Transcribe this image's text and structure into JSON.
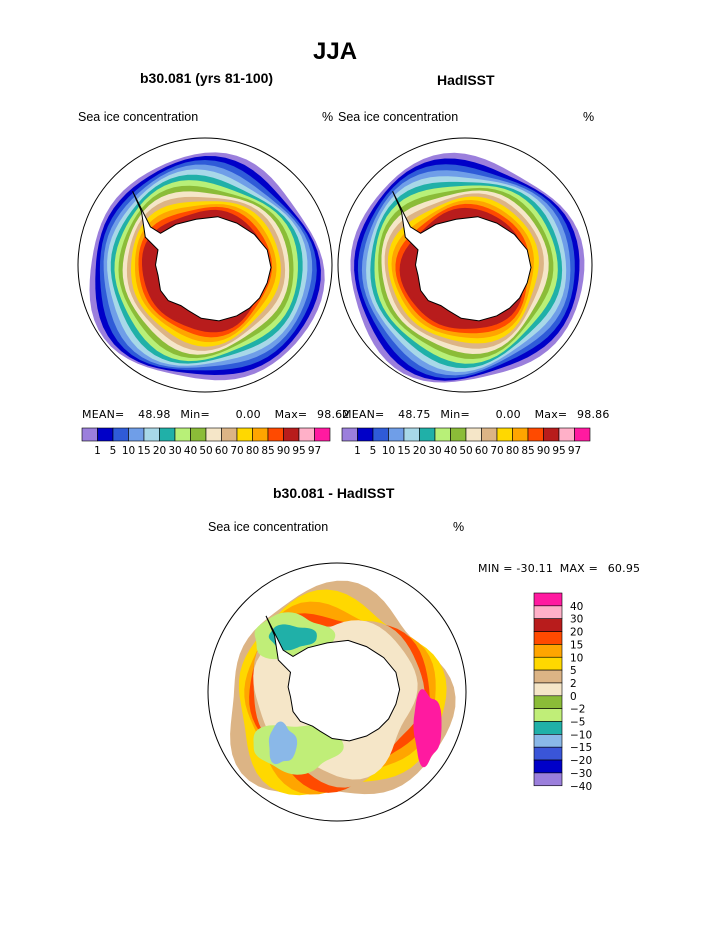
{
  "title": "JJA",
  "colors": {
    "sic_palette": [
      "#9b7fdc",
      "#0000c8",
      "#2f5bd8",
      "#6f9ee8",
      "#a8d8e8",
      "#20b0a8",
      "#b8f078",
      "#8bbc38",
      "#f5e6c8",
      "#dcb485",
      "#ffd800",
      "#ffa500",
      "#ff4a00",
      "#b81c1c",
      "#ffb0c8",
      "#ff1aa0"
    ],
    "diff_palette": [
      "#9b7fdc",
      "#0000c8",
      "#3a55d8",
      "#8ab8e8",
      "#20b0a8",
      "#c0ee78",
      "#8bbc38",
      "#f5e6c8",
      "#dcb485",
      "#ffd800",
      "#ffa500",
      "#ff4a00",
      "#b81c1c",
      "#ffb0c8",
      "#ff1aa0"
    ]
  },
  "panels": [
    {
      "subtitle": "b30.081 (yrs 81-100)",
      "left_label": "Sea ice concentration",
      "right_label": "%",
      "stats": {
        "mean_label": "MEAN=",
        "mean": "48.98",
        "min_label": "Min=",
        "min": "0.00",
        "max_label": "Max=",
        "max": "98.62"
      }
    },
    {
      "subtitle": "HadISST",
      "left_label": "Sea ice concentration",
      "right_label": "%",
      "stats": {
        "mean_label": "MEAN=",
        "mean": "48.75",
        "min_label": "Min=",
        "min": "0.00",
        "max_label": "Max=",
        "max": "98.86"
      }
    }
  ],
  "sic_colorbar_ticks": [
    "1",
    "5",
    "10",
    "15",
    "20",
    "30",
    "40",
    "50",
    "60",
    "70",
    "80",
    "85",
    "90",
    "95",
    "97"
  ],
  "diff_panel": {
    "subtitle": "b30.081 - HadISST",
    "left_label": "Sea ice concentration",
    "right_label": "%",
    "min_label": "MIN =",
    "min": "-30.11",
    "max_label": "MAX =",
    "max": "60.95"
  },
  "diff_colorbar_ticks": [
    "40",
    "30",
    "20",
    "15",
    "10",
    "5",
    "2",
    "0",
    "-2",
    "-5",
    "-10",
    "-15",
    "-20",
    "-30",
    "-40"
  ],
  "chart_data": [
    {
      "type": "heatmap",
      "title": "b30.081 (yrs 81-100)",
      "variable": "Sea ice concentration",
      "units": "%",
      "projection": "south polar stereographic",
      "levels": [
        1,
        5,
        10,
        15,
        20,
        30,
        40,
        50,
        60,
        70,
        80,
        85,
        90,
        95,
        97
      ],
      "mean": 48.98,
      "min": 0.0,
      "max": 98.62
    },
    {
      "type": "heatmap",
      "title": "HadISST",
      "variable": "Sea ice concentration",
      "units": "%",
      "projection": "south polar stereographic",
      "levels": [
        1,
        5,
        10,
        15,
        20,
        30,
        40,
        50,
        60,
        70,
        80,
        85,
        90,
        95,
        97
      ],
      "mean": 48.75,
      "min": 0.0,
      "max": 98.86
    },
    {
      "type": "heatmap",
      "title": "b30.081 - HadISST",
      "variable": "Sea ice concentration",
      "units": "%",
      "projection": "south polar stereographic",
      "levels": [
        -40,
        -30,
        -20,
        -15,
        -10,
        -5,
        -2,
        0,
        2,
        5,
        10,
        15,
        20,
        30,
        40
      ],
      "min": -30.11,
      "max": 60.95
    }
  ]
}
